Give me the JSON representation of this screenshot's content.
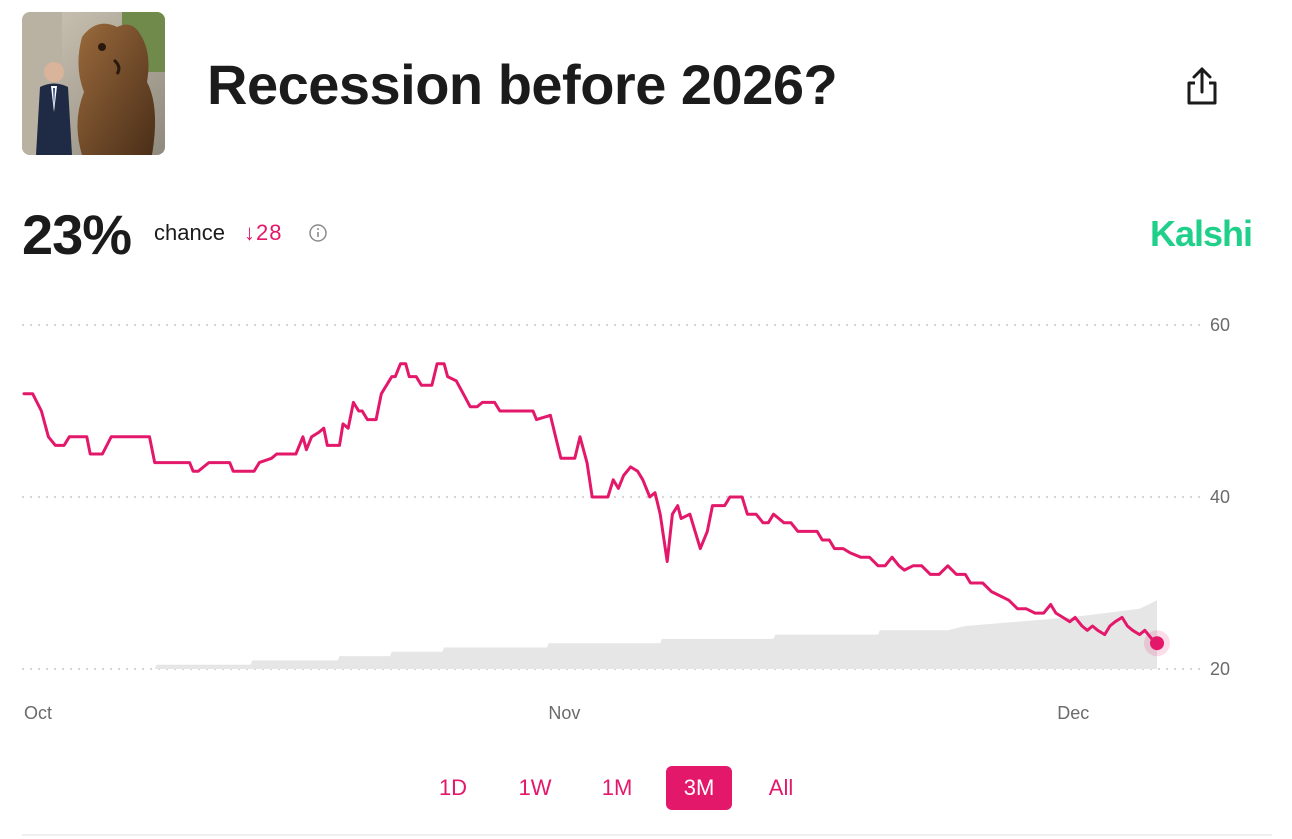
{
  "market": {
    "title": "Recession before 2026?",
    "probability": "23%",
    "probability_label": "chance",
    "change": "↓28",
    "brand": "Kalshi"
  },
  "colors": {
    "accent": "#e3186a",
    "brand": "#1fcf8a",
    "volume_fill": "#e6e6e6",
    "grid": "#c8c8c8"
  },
  "icons": {
    "share": "share-icon",
    "info": "info-icon",
    "thumbnail": "market-image"
  },
  "range_tabs": [
    {
      "label": "1D",
      "active": false
    },
    {
      "label": "1W",
      "active": false
    },
    {
      "label": "1M",
      "active": false
    },
    {
      "label": "3M",
      "active": true
    },
    {
      "label": "All",
      "active": false
    }
  ],
  "chart_data": {
    "type": "line",
    "title": "",
    "xlabel": "",
    "ylabel": "",
    "ylim": [
      20,
      60
    ],
    "y_ticks": [
      20,
      40,
      60
    ],
    "x_ticks": [
      "Oct",
      "Nov",
      "Dec"
    ],
    "x_range_days": [
      0,
      65
    ],
    "x_tick_days": [
      0,
      31,
      61
    ],
    "grid": true,
    "series": [
      {
        "values": [
          [
            0,
            52
          ],
          [
            0.5,
            52
          ],
          [
            1,
            50
          ],
          [
            1.4,
            47
          ],
          [
            1.8,
            46
          ],
          [
            2.3,
            46
          ],
          [
            2.6,
            47
          ],
          [
            3.6,
            47
          ],
          [
            3.8,
            45
          ],
          [
            4.5,
            45
          ],
          [
            5,
            47
          ],
          [
            7.2,
            47
          ],
          [
            7.5,
            44
          ],
          [
            9.5,
            44
          ],
          [
            9.7,
            43
          ],
          [
            10,
            43
          ],
          [
            10.6,
            44
          ],
          [
            11.8,
            44
          ],
          [
            12,
            43
          ],
          [
            13.2,
            43
          ],
          [
            13.5,
            44
          ],
          [
            14.2,
            44.5
          ],
          [
            14.5,
            45
          ],
          [
            15.6,
            45
          ],
          [
            15.8,
            46
          ],
          [
            16,
            47
          ],
          [
            16.2,
            45.5
          ],
          [
            16.5,
            47
          ],
          [
            16.9,
            47.5
          ],
          [
            17.2,
            48
          ],
          [
            17.4,
            46
          ],
          [
            18.1,
            46
          ],
          [
            18.3,
            48.5
          ],
          [
            18.6,
            48
          ],
          [
            18.9,
            51
          ],
          [
            19.2,
            50
          ],
          [
            19.4,
            50
          ],
          [
            19.7,
            49
          ],
          [
            20.2,
            49
          ],
          [
            20.5,
            52
          ],
          [
            21.1,
            54
          ],
          [
            21.3,
            54
          ],
          [
            21.6,
            55.5
          ],
          [
            21.9,
            55.5
          ],
          [
            22.1,
            54
          ],
          [
            22.5,
            54
          ],
          [
            22.8,
            53
          ],
          [
            23.4,
            53
          ],
          [
            23.7,
            55.5
          ],
          [
            24.1,
            55.5
          ],
          [
            24.3,
            54
          ],
          [
            24.8,
            53.5
          ],
          [
            25.2,
            52
          ],
          [
            25.6,
            50.5
          ],
          [
            26,
            50.5
          ],
          [
            26.3,
            51
          ],
          [
            27,
            51
          ],
          [
            27.3,
            50
          ],
          [
            29.2,
            50
          ],
          [
            29.4,
            49
          ],
          [
            30.2,
            49.5
          ],
          [
            30.5,
            47
          ],
          [
            30.8,
            44.5
          ],
          [
            31.6,
            44.5
          ],
          [
            31.9,
            47
          ],
          [
            32.3,
            44
          ],
          [
            32.6,
            40
          ],
          [
            33.5,
            40
          ],
          [
            33.8,
            42
          ],
          [
            34.1,
            41
          ],
          [
            34.4,
            42.5
          ],
          [
            34.8,
            43.5
          ],
          [
            35.2,
            43
          ],
          [
            35.5,
            42
          ],
          [
            35.9,
            40
          ],
          [
            36.2,
            40.5
          ],
          [
            36.5,
            38
          ],
          [
            36.9,
            32.5
          ],
          [
            37.2,
            38
          ],
          [
            37.5,
            39
          ],
          [
            37.7,
            37.5
          ],
          [
            38.2,
            38
          ],
          [
            38.5,
            36
          ],
          [
            38.8,
            34
          ],
          [
            39.2,
            36
          ],
          [
            39.5,
            39
          ],
          [
            40.2,
            39
          ],
          [
            40.5,
            40
          ],
          [
            41.2,
            40
          ],
          [
            41.5,
            38
          ],
          [
            42,
            38
          ],
          [
            42.4,
            37
          ],
          [
            42.7,
            37
          ],
          [
            43,
            38
          ],
          [
            43.3,
            37.5
          ],
          [
            43.6,
            37
          ],
          [
            44,
            37
          ],
          [
            44.4,
            36
          ],
          [
            44.8,
            36
          ],
          [
            45.5,
            36
          ],
          [
            45.8,
            35
          ],
          [
            46.2,
            35
          ],
          [
            46.5,
            34
          ],
          [
            47,
            34
          ],
          [
            47.4,
            33.5
          ],
          [
            48,
            33
          ],
          [
            48.5,
            33
          ],
          [
            49,
            32
          ],
          [
            49.4,
            32
          ],
          [
            49.8,
            33
          ],
          [
            50.2,
            32
          ],
          [
            50.5,
            31.5
          ],
          [
            51,
            32
          ],
          [
            51.5,
            32
          ],
          [
            52,
            31
          ],
          [
            52.5,
            31
          ],
          [
            53,
            32
          ],
          [
            53.5,
            31
          ],
          [
            54,
            31
          ],
          [
            54.3,
            30
          ],
          [
            55,
            30
          ],
          [
            55.5,
            29
          ],
          [
            56,
            28.5
          ],
          [
            56.5,
            28
          ],
          [
            57,
            27
          ],
          [
            57.5,
            27
          ],
          [
            58,
            26.5
          ],
          [
            58.5,
            26.5
          ],
          [
            58.9,
            27.5
          ],
          [
            59.2,
            26.5
          ],
          [
            59.6,
            26
          ],
          [
            60,
            25.5
          ],
          [
            60.3,
            26
          ],
          [
            60.7,
            25
          ],
          [
            61,
            24.5
          ],
          [
            61.3,
            25
          ],
          [
            61.6,
            24.5
          ],
          [
            62,
            24
          ],
          [
            62.3,
            25
          ],
          [
            62.6,
            25.5
          ],
          [
            63,
            26
          ],
          [
            63.3,
            25
          ],
          [
            63.6,
            24.5
          ],
          [
            64,
            24
          ],
          [
            64.3,
            24.5
          ],
          [
            64.7,
            23.5
          ],
          [
            65,
            23
          ]
        ]
      }
    ],
    "volume_area": [
      [
        0,
        20
      ],
      [
        7.5,
        20
      ],
      [
        7.6,
        20.5
      ],
      [
        13,
        20.5
      ],
      [
        13.1,
        21
      ],
      [
        18,
        21
      ],
      [
        18.1,
        21.5
      ],
      [
        21,
        21.5
      ],
      [
        21.1,
        22
      ],
      [
        24,
        22
      ],
      [
        24.1,
        22.5
      ],
      [
        30,
        22.5
      ],
      [
        30.1,
        23
      ],
      [
        36.5,
        23
      ],
      [
        36.6,
        23.5
      ],
      [
        43,
        23.5
      ],
      [
        43.1,
        24
      ],
      [
        49,
        24
      ],
      [
        49.1,
        24.5
      ],
      [
        53,
        24.5
      ],
      [
        54,
        25
      ],
      [
        57,
        25.5
      ],
      [
        60,
        26
      ],
      [
        62,
        26.5
      ],
      [
        64,
        27
      ],
      [
        65,
        28
      ]
    ],
    "endpoint": {
      "x": 65,
      "y": 23
    }
  }
}
